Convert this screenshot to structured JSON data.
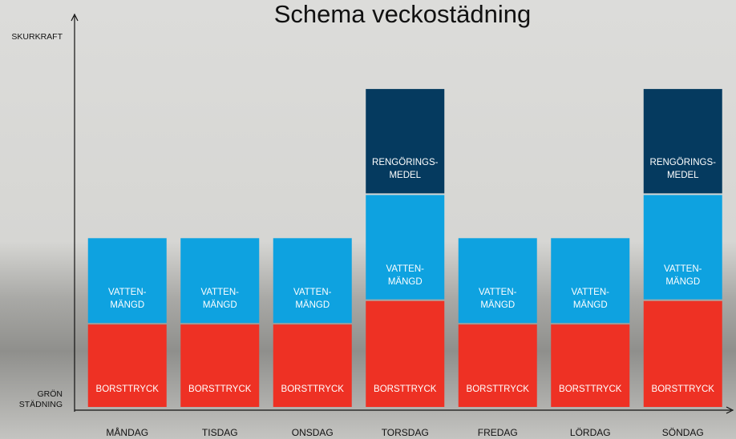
{
  "chart_data": {
    "type": "stacked-bar",
    "title": "Schema veckostädning",
    "y_label_top": "SKURKRAFT",
    "y_label_bottom": "GRÖN\nSTÄDNING",
    "categories": [
      "MÅNDAG",
      "TISDAG",
      "ONSDAG",
      "TORSDAG",
      "FREDAG",
      "LÖRDAG",
      "SÖNDAG"
    ],
    "series": [
      {
        "name": "BORSTTRYCK",
        "color": "#ee3124",
        "values": [
          21,
          21,
          21,
          27,
          21,
          21,
          27
        ]
      },
      {
        "name": "VATTEN-\nMÄNGD",
        "color": "#0ea2e0",
        "values": [
          22,
          22,
          22,
          27,
          22,
          22,
          27
        ]
      },
      {
        "name": "RENGÖRINGS-\nMEDEL",
        "color": "#053a5f",
        "values": [
          null,
          null,
          null,
          27,
          null,
          null,
          27
        ]
      }
    ],
    "ylim": [
      0,
      100
    ]
  }
}
